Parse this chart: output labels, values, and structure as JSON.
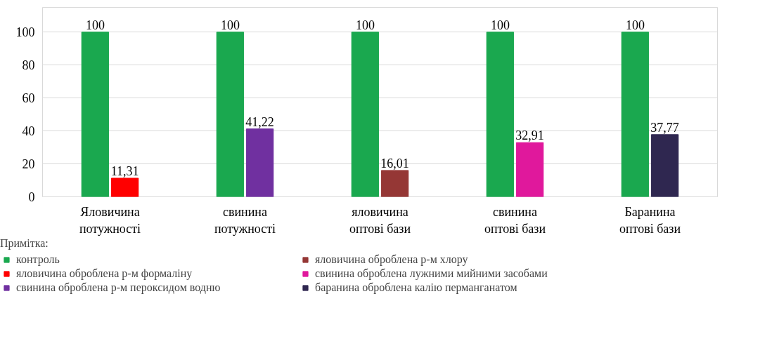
{
  "chart_data": {
    "type": "bar",
    "categories": [
      "Яловичина\nпотужності",
      "свинина\nпотужності",
      "яловичина\nоптові бази",
      "свинина\nоптові бази",
      "Баранина\nоптові бази"
    ],
    "series": [
      {
        "name": "контроль",
        "color": "#1aa84f",
        "values": [
          100,
          100,
          100,
          100,
          100
        ],
        "value_labels": [
          "100",
          "100",
          "100",
          "100",
          "100"
        ]
      },
      {
        "name": "яловичина оброблена р-м формаліну",
        "color": "#ff0000",
        "values": [
          11.31,
          null,
          null,
          null,
          null
        ],
        "value_labels": [
          "11,31",
          null,
          null,
          null,
          null
        ]
      },
      {
        "name": "свинина оброблена р-м пероксидом водню",
        "color": "#7030a0",
        "values": [
          null,
          41.22,
          null,
          null,
          null
        ],
        "value_labels": [
          null,
          "41,22",
          null,
          null,
          null
        ]
      },
      {
        "name": "яловичина оброблена р-м хлору",
        "color": "#953735",
        "values": [
          null,
          null,
          16.01,
          null,
          null
        ],
        "value_labels": [
          null,
          null,
          "16,01",
          null,
          null
        ]
      },
      {
        "name": "свинина оброблена лужними мийними засобами",
        "color": "#e0189c",
        "values": [
          null,
          null,
          null,
          32.91,
          null
        ],
        "value_labels": [
          null,
          null,
          null,
          "32,91",
          null
        ]
      },
      {
        "name": "баранина оброблена калію перманганатом",
        "color": "#2f2750",
        "values": [
          null,
          null,
          null,
          null,
          37.77
        ],
        "value_labels": [
          null,
          null,
          null,
          null,
          "37,77"
        ]
      }
    ],
    "ylim": [
      0,
      115
    ],
    "yticks": [
      0,
      20,
      40,
      60,
      80,
      100
    ],
    "grid": "y",
    "legend": "bottom",
    "legend_title": "Примітка:"
  }
}
